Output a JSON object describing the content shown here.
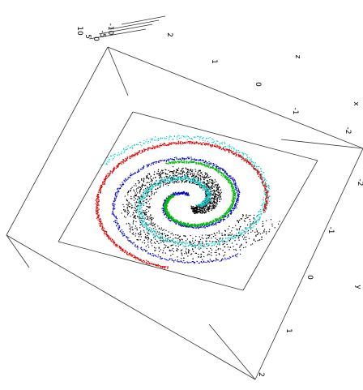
{
  "chart_data": {
    "type": "scatter",
    "projection": "3d",
    "view": "rotated",
    "title": "",
    "axes": {
      "x": {
        "label": "x",
        "ticks": [
          "-2",
          "-1",
          "0",
          "1",
          "2"
        ],
        "range": [
          -2,
          2
        ]
      },
      "y": {
        "label": "y",
        "ticks": [
          "-2",
          "-1",
          "0",
          "1",
          "2"
        ],
        "range": [
          -2,
          2
        ]
      },
      "z": {
        "label": "z",
        "ticks": [
          "10",
          "5",
          "0",
          "-5",
          "-10"
        ],
        "range": [
          -10,
          10
        ]
      }
    },
    "grid": false,
    "legend": "none",
    "series": [
      {
        "color": "#000000",
        "shape": "filled spiral sheet",
        "spiral_start_radius": 0.25,
        "spiral_end_radius": 1.55,
        "angle_start_deg": 40,
        "turns": 1.15,
        "band_width": 0.55
      },
      {
        "color": "#0000cc",
        "shape": "spiral ribbon",
        "spiral_start_radius": 0.2,
        "spiral_end_radius": 1.85,
        "angle_start_deg": 200,
        "turns": 1.6,
        "band_width": 0.06
      },
      {
        "color": "#dd0000",
        "shape": "spiral ribbon",
        "spiral_start_radius": 1.55,
        "spiral_end_radius": 1.95,
        "angle_start_deg": 100,
        "turns": 0.75,
        "band_width": 0.05
      },
      {
        "color": "#00cccc",
        "shape": "spiral ribbon",
        "spiral_start_radius": 0.25,
        "spiral_end_radius": 2.05,
        "angle_start_deg": 80,
        "turns": 1.5,
        "band_width": 0.12
      },
      {
        "color": "#00bb00",
        "shape": "spiral ribbon",
        "spiral_start_radius": 0.35,
        "spiral_end_radius": 1.2,
        "angle_start_deg": 260,
        "turns": 0.9,
        "band_width": 0.05
      }
    ]
  }
}
